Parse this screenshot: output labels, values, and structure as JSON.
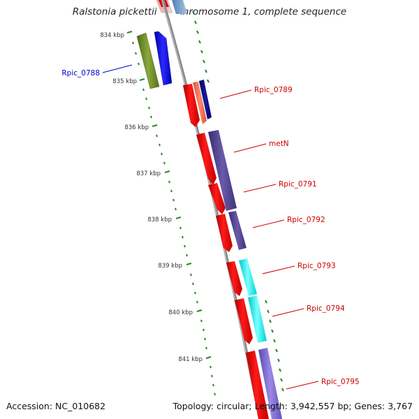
{
  "title": "Ralstonia pickettii 12J chromosome 1, complete sequence",
  "accession_text": "Accession: NC_010682",
  "summary_text": "Topology: circular; Length: 3,942,557 bp; Genes: 3,767",
  "colors": {
    "backbone": "#8a8a8a",
    "tick": "#228b22",
    "label_forward": "#cc0000",
    "label_reverse": "#0000cc"
  },
  "scale": {
    "unit": "kbp",
    "ticks": [
      {
        "label": "834 kbp",
        "value": 834
      },
      {
        "label": "835 kbp",
        "value": 835
      },
      {
        "label": "836 kbp",
        "value": 836
      },
      {
        "label": "837 kbp",
        "value": 837
      },
      {
        "label": "838 kbp",
        "value": 838
      },
      {
        "label": "839 kbp",
        "value": 839
      },
      {
        "label": "840 kbp",
        "value": 840
      },
      {
        "label": "841 kbp",
        "value": 841
      }
    ]
  },
  "gene_labels": [
    {
      "text": "Rpic_0788",
      "strand": "reverse"
    },
    {
      "text": "Rpic_0789",
      "strand": "forward"
    },
    {
      "text": "metN",
      "strand": "forward"
    },
    {
      "text": "Rpic_0791",
      "strand": "forward"
    },
    {
      "text": "Rpic_0792",
      "strand": "forward"
    },
    {
      "text": "Rpic_0793",
      "strand": "forward"
    },
    {
      "text": "Rpic_0794",
      "strand": "forward"
    },
    {
      "text": "Rpic_0795",
      "strand": "forward"
    }
  ]
}
